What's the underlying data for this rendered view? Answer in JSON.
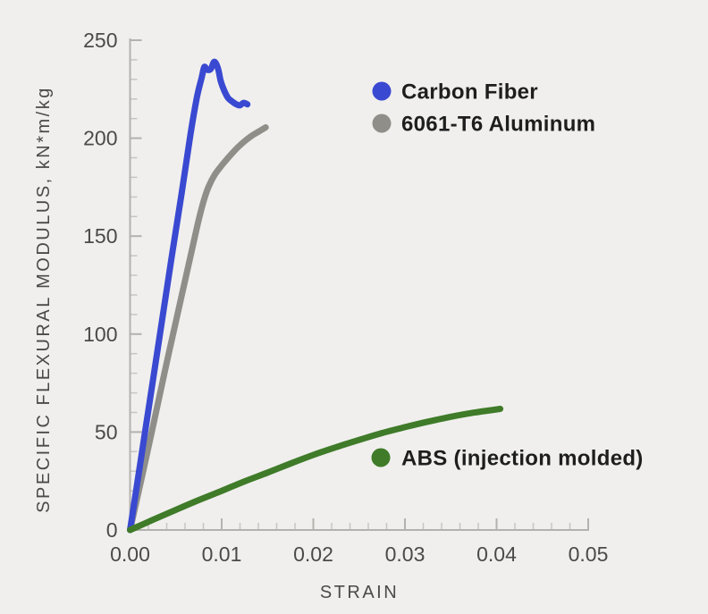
{
  "colors": {
    "background": "#f0efed",
    "axis": "#b3b2af",
    "minor_tick": "#c6c5c2",
    "tick_label": "#4a4a48",
    "axis_title": "#4a4a48",
    "legend_text": "#1e1e1e"
  },
  "chart_data": {
    "type": "line",
    "title": "",
    "xlabel": "STRAIN",
    "ylabel": "SPECIFIC FLEXURAL MODULUS, kN*m/kg",
    "xlim": [
      0,
      0.05
    ],
    "ylim": [
      0,
      250
    ],
    "x_major_step": 0.01,
    "x_minor_step": 0.002,
    "y_major_step": 50,
    "y_minor_step": 10,
    "x_tick_labels": [
      "0.00",
      "0.01",
      "0.02",
      "0.03",
      "0.04",
      "0.05"
    ],
    "y_tick_labels": [
      "0",
      "50",
      "100",
      "150",
      "200",
      "250"
    ],
    "grid": false,
    "legend_position": "inline-annotations (two entries upper right, one beside ABS curve end)",
    "series": [
      {
        "name": "Carbon Fiber",
        "color": "#3a49d1",
        "points": [
          [
            0,
            0
          ],
          [
            0.0015,
            46
          ],
          [
            0.003,
            92
          ],
          [
            0.0045,
            138
          ],
          [
            0.0056,
            171
          ],
          [
            0.0066,
            202
          ],
          [
            0.0073,
            221
          ],
          [
            0.0078,
            230.5
          ],
          [
            0.0081,
            236.3
          ],
          [
            0.0084,
            234.9
          ],
          [
            0.0088,
            235.3
          ],
          [
            0.0092,
            239
          ],
          [
            0.0096,
            235.5
          ],
          [
            0.0099,
            229
          ],
          [
            0.0103,
            224
          ],
          [
            0.0107,
            220.5
          ],
          [
            0.0112,
            218.5
          ],
          [
            0.0116,
            217.3
          ],
          [
            0.012,
            216.8
          ],
          [
            0.0124,
            218
          ],
          [
            0.0128,
            217.3
          ]
        ]
      },
      {
        "name": "6061-T6 Aluminum",
        "color": "#8f8e89",
        "points": [
          [
            0,
            0
          ],
          [
            0.0019,
            40
          ],
          [
            0.0038,
            81
          ],
          [
            0.0056,
            119
          ],
          [
            0.0068,
            144
          ],
          [
            0.0075,
            158.5
          ],
          [
            0.0081,
            169
          ],
          [
            0.0086,
            175.5
          ],
          [
            0.0092,
            181
          ],
          [
            0.0099,
            185.5
          ],
          [
            0.0108,
            190.5
          ],
          [
            0.0118,
            195.5
          ],
          [
            0.0126,
            198.8
          ],
          [
            0.0133,
            201.3
          ],
          [
            0.0141,
            203.5
          ],
          [
            0.0148,
            205.5
          ]
        ]
      },
      {
        "name": "ABS (injection molded)",
        "color": "#3f7b29",
        "points": [
          [
            0,
            0
          ],
          [
            0.0025,
            5.2
          ],
          [
            0.005,
            10.3
          ],
          [
            0.0075,
            15.3
          ],
          [
            0.01,
            20
          ],
          [
            0.0125,
            24.8
          ],
          [
            0.015,
            29.3
          ],
          [
            0.0175,
            33.9
          ],
          [
            0.02,
            38.3
          ],
          [
            0.0225,
            42.3
          ],
          [
            0.025,
            46
          ],
          [
            0.0275,
            49.5
          ],
          [
            0.03,
            52.5
          ],
          [
            0.0325,
            55.3
          ],
          [
            0.035,
            57.8
          ],
          [
            0.0375,
            59.9
          ],
          [
            0.0404,
            61.8
          ]
        ]
      }
    ]
  }
}
